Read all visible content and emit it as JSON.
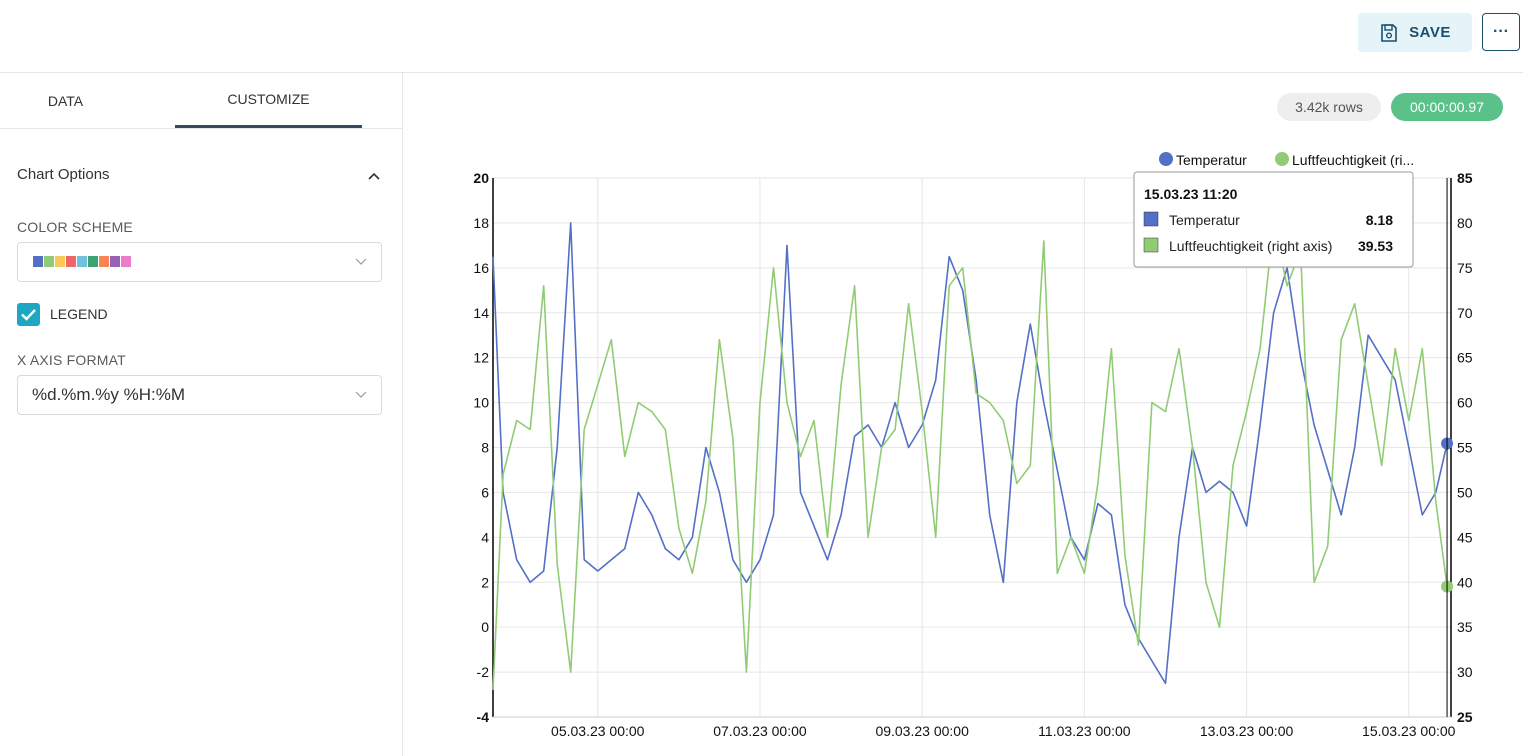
{
  "header": {
    "save_label": "SAVE",
    "more_label": "···"
  },
  "tabs": [
    {
      "label": "DATA"
    },
    {
      "label": "CUSTOMIZE"
    }
  ],
  "options": {
    "section_title": "Chart Options",
    "color_scheme_label": "COLOR SCHEME",
    "color_scheme_colors": [
      "#5470c6",
      "#91cc75",
      "#fac858",
      "#ee6666",
      "#73c0de",
      "#3ba272",
      "#fc8452",
      "#9a60b4",
      "#ea7ccc"
    ],
    "legend_label": "LEGEND",
    "legend_checked": true,
    "x_axis_format_label": "X AXIS FORMAT",
    "x_axis_format_value": "%d.%m.%y %H:%M"
  },
  "stats": {
    "rows": "3.42k rows",
    "duration": "00:00:00.97"
  },
  "colors": {
    "temperature": "#5470c6",
    "humidity": "#91cc75",
    "accent": "#1ea7c5",
    "success": "#5ac189"
  },
  "chart_data": {
    "type": "line",
    "legend_placement": "top-right",
    "grid": true,
    "x_ticks": [
      "05.03.23 00:00",
      "07.03.23 00:00",
      "09.03.23 00:00",
      "11.03.23 00:00",
      "13.03.23 00:00",
      "15.03.23 00:00"
    ],
    "xlim": [
      "03.03.23 17:00",
      "15.03.23 12:30"
    ],
    "ylim_left": [
      -4,
      20
    ],
    "y_ticks_left": [
      -4,
      -2,
      0,
      2,
      4,
      6,
      8,
      10,
      12,
      14,
      16,
      18,
      20
    ],
    "ylim_right": [
      25,
      85
    ],
    "y_ticks_right": [
      25,
      30,
      35,
      40,
      45,
      50,
      55,
      60,
      65,
      70,
      75,
      80,
      85
    ],
    "legend_labels": [
      "Temperatur",
      "Luftfeuchtigkeit (ri..."
    ],
    "series": [
      {
        "name": "Temperatur",
        "axis": "left",
        "x": [
          "03.03.23 17:00",
          "03.03.23 20:00",
          "04.03.23 00:00",
          "04.03.23 04:00",
          "04.03.23 08:00",
          "04.03.23 12:00",
          "04.03.23 16:00",
          "04.03.23 20:00",
          "05.03.23 00:00",
          "05.03.23 04:00",
          "05.03.23 08:00",
          "05.03.23 12:00",
          "05.03.23 16:00",
          "05.03.23 20:00",
          "06.03.23 00:00",
          "06.03.23 04:00",
          "06.03.23 08:00",
          "06.03.23 12:00",
          "06.03.23 16:00",
          "06.03.23 20:00",
          "07.03.23 00:00",
          "07.03.23 04:00",
          "07.03.23 08:00",
          "07.03.23 12:00",
          "07.03.23 16:00",
          "07.03.23 20:00",
          "08.03.23 00:00",
          "08.03.23 04:00",
          "08.03.23 08:00",
          "08.03.23 12:00",
          "08.03.23 16:00",
          "08.03.23 20:00",
          "09.03.23 00:00",
          "09.03.23 04:00",
          "09.03.23 08:00",
          "09.03.23 12:00",
          "09.03.23 16:00",
          "09.03.23 20:00",
          "10.03.23 00:00",
          "10.03.23 04:00",
          "10.03.23 08:00",
          "10.03.23 12:00",
          "10.03.23 16:00",
          "10.03.23 20:00",
          "11.03.23 00:00",
          "11.03.23 04:00",
          "11.03.23 08:00",
          "11.03.23 12:00",
          "11.03.23 16:00",
          "11.03.23 20:00",
          "12.03.23 00:00",
          "12.03.23 04:00",
          "12.03.23 08:00",
          "12.03.23 12:00",
          "12.03.23 16:00",
          "12.03.23 20:00",
          "13.03.23 00:00",
          "13.03.23 04:00",
          "13.03.23 08:00",
          "13.03.23 12:00",
          "13.03.23 16:00",
          "13.03.23 20:00",
          "14.03.23 00:00",
          "14.03.23 04:00",
          "14.03.23 08:00",
          "14.03.23 12:00",
          "14.03.23 16:00",
          "14.03.23 20:00",
          "15.03.23 00:00",
          "15.03.23 04:00",
          "15.03.23 08:00",
          "15.03.23 11:20"
        ],
        "values": [
          16.5,
          6,
          3,
          2,
          2.5,
          8,
          18,
          3,
          2.5,
          3,
          3.5,
          6,
          5,
          3.5,
          3,
          4,
          8,
          6,
          3,
          2,
          3,
          5,
          17,
          6,
          4.5,
          3,
          5,
          8.5,
          9,
          8,
          10,
          8,
          9,
          11,
          16.5,
          15,
          11,
          5,
          2,
          10,
          13.5,
          10,
          7,
          4,
          3,
          5.5,
          5,
          1,
          -0.5,
          -1.5,
          -2.5,
          4,
          8,
          6,
          6.5,
          6,
          4.5,
          9,
          14,
          16,
          12,
          9,
          7,
          5,
          8,
          13,
          12,
          11,
          8,
          5,
          6,
          8.18
        ]
      },
      {
        "name": "Luftfeuchtigkeit (right axis)",
        "axis": "right",
        "x": [
          "03.03.23 17:00",
          "03.03.23 20:00",
          "04.03.23 00:00",
          "04.03.23 04:00",
          "04.03.23 08:00",
          "04.03.23 12:00",
          "04.03.23 16:00",
          "04.03.23 20:00",
          "05.03.23 00:00",
          "05.03.23 04:00",
          "05.03.23 08:00",
          "05.03.23 12:00",
          "05.03.23 16:00",
          "05.03.23 20:00",
          "06.03.23 00:00",
          "06.03.23 04:00",
          "06.03.23 08:00",
          "06.03.23 12:00",
          "06.03.23 16:00",
          "06.03.23 20:00",
          "07.03.23 00:00",
          "07.03.23 04:00",
          "07.03.23 08:00",
          "07.03.23 12:00",
          "07.03.23 16:00",
          "07.03.23 20:00",
          "08.03.23 00:00",
          "08.03.23 04:00",
          "08.03.23 08:00",
          "08.03.23 12:00",
          "08.03.23 16:00",
          "08.03.23 20:00",
          "09.03.23 00:00",
          "09.03.23 04:00",
          "09.03.23 08:00",
          "09.03.23 12:00",
          "09.03.23 16:00",
          "09.03.23 20:00",
          "10.03.23 00:00",
          "10.03.23 04:00",
          "10.03.23 08:00",
          "10.03.23 12:00",
          "10.03.23 16:00",
          "10.03.23 20:00",
          "11.03.23 00:00",
          "11.03.23 04:00",
          "11.03.23 08:00",
          "11.03.23 12:00",
          "11.03.23 16:00",
          "11.03.23 20:00",
          "12.03.23 00:00",
          "12.03.23 04:00",
          "12.03.23 08:00",
          "12.03.23 12:00",
          "12.03.23 16:00",
          "12.03.23 20:00",
          "13.03.23 00:00",
          "13.03.23 04:00",
          "13.03.23 08:00",
          "13.03.23 12:00",
          "13.03.23 16:00",
          "13.03.23 20:00",
          "14.03.23 00:00",
          "14.03.23 04:00",
          "14.03.23 08:00",
          "14.03.23 12:00",
          "14.03.23 16:00",
          "14.03.23 20:00",
          "15.03.23 00:00",
          "15.03.23 04:00",
          "15.03.23 08:00",
          "15.03.23 11:20"
        ],
        "values": [
          28,
          52,
          58,
          57,
          73,
          42,
          30,
          57,
          62,
          67,
          54,
          60,
          59,
          57,
          46,
          41,
          49,
          67,
          56,
          30,
          60,
          75,
          60,
          54,
          58,
          45,
          62,
          73,
          45,
          55,
          57,
          71,
          59,
          45,
          73,
          75,
          61,
          60,
          58,
          51,
          53,
          78,
          41,
          45,
          41,
          51,
          66,
          43,
          33,
          60,
          59,
          66,
          55,
          40,
          35,
          53,
          59,
          66,
          80,
          73,
          77,
          40,
          44,
          67,
          71,
          62,
          53,
          66,
          58,
          66,
          49,
          39.53
        ]
      }
    ],
    "tooltip": {
      "title": "15.03.23 11:20",
      "items": [
        {
          "label": "Temperatur",
          "value": "8.18"
        },
        {
          "label": "Luftfeuchtigkeit (right axis)",
          "value": "39.53"
        }
      ]
    }
  }
}
